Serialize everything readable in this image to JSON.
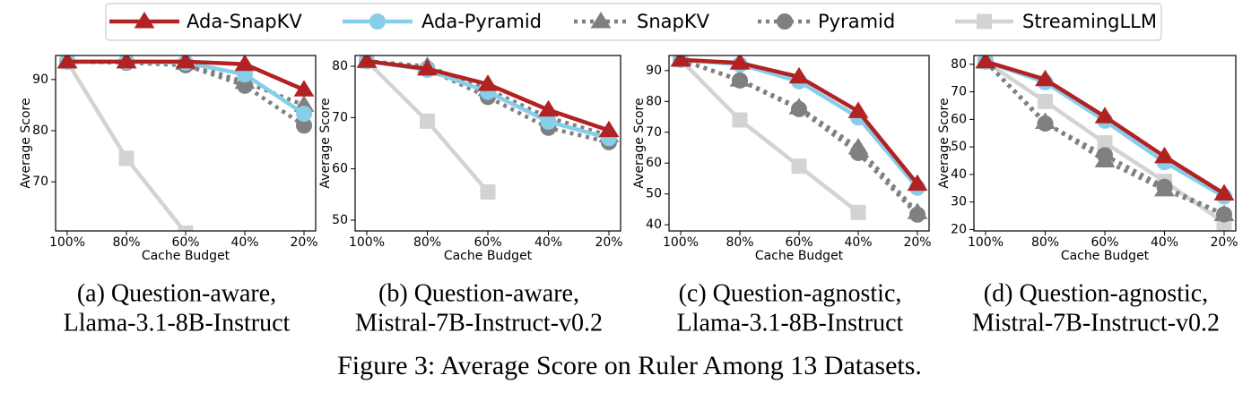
{
  "legend": [
    {
      "name": "Ada-SnapKV",
      "color": "#b22222",
      "marker": "triangle",
      "dashed": false
    },
    {
      "name": "Ada-Pyramid",
      "color": "#87ceeb",
      "marker": "circle",
      "dashed": false
    },
    {
      "name": "SnapKV",
      "color": "#808080",
      "marker": "triangle",
      "dashed": true
    },
    {
      "name": "Pyramid",
      "color": "#808080",
      "marker": "circle",
      "dashed": true
    },
    {
      "name": "StreamingLLM",
      "color": "#d3d3d3",
      "marker": "square",
      "dashed": false
    }
  ],
  "chart_data": [
    {
      "type": "line",
      "caption": [
        "(a) Question-aware,",
        "Llama-3.1-8B-Instruct"
      ],
      "x_label": "Cache Budget",
      "y_label": "Average Score",
      "categories": [
        "100%",
        "80%",
        "60%",
        "40%",
        "20%"
      ],
      "ylim": [
        60.4,
        94.7
      ],
      "yticks": [
        70,
        80,
        90
      ],
      "series": [
        {
          "values": [
            93.5,
            93.5,
            93.5,
            93.0,
            88.0
          ]
        },
        {
          "values": [
            93.5,
            93.5,
            93.3,
            91.0,
            83.3
          ]
        },
        {
          "values": [
            93.5,
            93.5,
            93.2,
            89.5,
            85.0
          ]
        },
        {
          "values": [
            93.5,
            93.3,
            92.8,
            88.8,
            81.0
          ]
        },
        {
          "values": [
            93.5,
            74.6,
            60.0,
            null,
            null
          ]
        }
      ]
    },
    {
      "type": "line",
      "caption": [
        "(b) Question-aware,",
        "Mistral-7B-Instruct-v0.2"
      ],
      "x_label": "Cache Budget",
      "y_label": "Average Score",
      "categories": [
        "100%",
        "80%",
        "60%",
        "40%",
        "20%"
      ],
      "ylim": [
        47.9,
        82.1
      ],
      "yticks": [
        50,
        60,
        70,
        80
      ],
      "series": [
        {
          "values": [
            81.0,
            79.5,
            76.5,
            71.5,
            67.5
          ]
        },
        {
          "values": [
            81.0,
            79.3,
            75.0,
            69.2,
            66.0
          ]
        },
        {
          "values": [
            81.0,
            80.0,
            75.5,
            70.0,
            66.5
          ]
        },
        {
          "values": [
            81.0,
            79.5,
            74.0,
            68.0,
            65.2
          ]
        },
        {
          "values": [
            81.0,
            69.3,
            55.5,
            null,
            null
          ]
        }
      ]
    },
    {
      "type": "line",
      "caption": [
        "(c) Question-agnostic,",
        "Llama-3.1-8B-Instruct"
      ],
      "x_label": "Cache Budget",
      "y_label": "Average Score",
      "categories": [
        "100%",
        "80%",
        "60%",
        "40%",
        "20%"
      ],
      "ylim": [
        38.0,
        94.9
      ],
      "yticks": [
        40,
        50,
        60,
        70,
        80,
        90
      ],
      "series": [
        {
          "values": [
            93.5,
            92.5,
            88.0,
            76.8,
            53.2
          ]
        },
        {
          "values": [
            93.5,
            92.0,
            86.5,
            74.8,
            52.0
          ]
        },
        {
          "values": [
            93.5,
            87.0,
            78.0,
            65.0,
            44.0
          ]
        },
        {
          "values": [
            93.5,
            86.8,
            77.5,
            63.3,
            43.3
          ]
        },
        {
          "values": [
            93.5,
            74.0,
            59.0,
            44.0,
            null
          ]
        }
      ]
    },
    {
      "type": "line",
      "caption": [
        "(d) Question-agnostic,",
        "Mistral-7B-Instruct-v0.2"
      ],
      "x_label": "Cache Budget",
      "y_label": "Average Score",
      "categories": [
        "100%",
        "80%",
        "60%",
        "40%",
        "20%"
      ],
      "ylim": [
        19.5,
        83.2
      ],
      "yticks": [
        20,
        30,
        40,
        50,
        60,
        70,
        80
      ],
      "series": [
        {
          "values": [
            81.0,
            74.5,
            61.0,
            46.5,
            33.0
          ]
        },
        {
          "values": [
            81.0,
            73.5,
            59.5,
            44.5,
            32.0
          ]
        },
        {
          "values": [
            81.0,
            59.0,
            45.0,
            34.5,
            25.5
          ]
        },
        {
          "values": [
            81.0,
            58.5,
            47.0,
            35.5,
            25.5
          ]
        },
        {
          "values": [
            81.0,
            66.5,
            51.5,
            37.5,
            22.5
          ]
        }
      ]
    }
  ],
  "figure_caption": "Figure 3: Average Score on Ruler Among 13 Datasets."
}
